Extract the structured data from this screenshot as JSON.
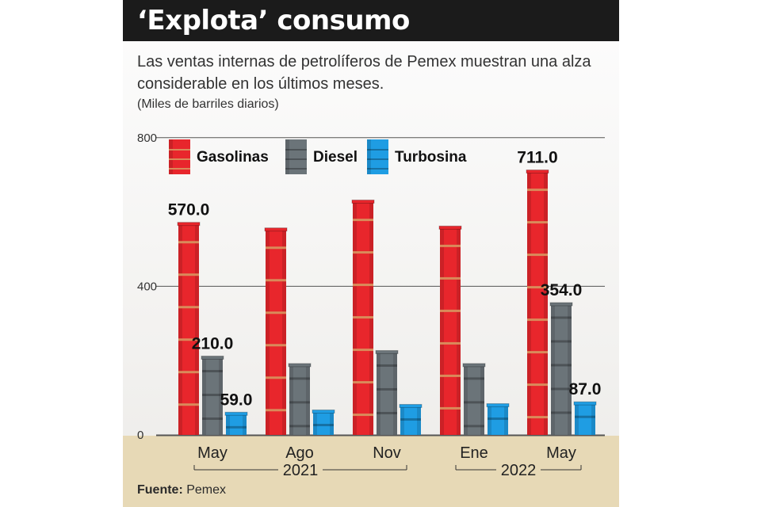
{
  "title": "‘Explota’ consumo",
  "subtitle": "Las ventas internas de petrolíferos de Pemex muestran una alza considerable en los últimos meses.",
  "unit_note": "(Miles de barriles diarios)",
  "source_label": "Fuente:",
  "source_value": "Pemex",
  "colors": {
    "gasolinas": "#e8262c",
    "diesel": "#6b7479",
    "turbosina": "#1f9de3",
    "band": "#d98a5a",
    "gridline": "#555555"
  },
  "chart_data": {
    "type": "bar",
    "categories": [
      "May",
      "Ago",
      "Nov",
      "Ene",
      "May"
    ],
    "year_groups": [
      {
        "label": "2021",
        "from": 0,
        "to": 2
      },
      {
        "label": "2022",
        "from": 3,
        "to": 4
      }
    ],
    "series": [
      {
        "name": "Gasolinas",
        "color": "#e8262c",
        "values": [
          570.0,
          555,
          630,
          560,
          711.0
        ]
      },
      {
        "name": "Diesel",
        "color": "#6b7479",
        "values": [
          210.0,
          190,
          225,
          190,
          354.0
        ]
      },
      {
        "name": "Turbosina",
        "color": "#1f9de3",
        "values": [
          59.0,
          65,
          80,
          82,
          87.0
        ]
      }
    ],
    "data_labels": [
      {
        "series": 0,
        "index": 0,
        "text": "570.0"
      },
      {
        "series": 1,
        "index": 0,
        "text": "210.0"
      },
      {
        "series": 2,
        "index": 0,
        "text": "59.0"
      },
      {
        "series": 0,
        "index": 4,
        "text": "711.0"
      },
      {
        "series": 1,
        "index": 4,
        "text": "354.0"
      },
      {
        "series": 2,
        "index": 4,
        "text": "87.0"
      }
    ],
    "y_ticks": [
      "0",
      "400",
      "800"
    ],
    "ylim": [
      0,
      800
    ],
    "legend_position": "top-left",
    "grid": true
  }
}
